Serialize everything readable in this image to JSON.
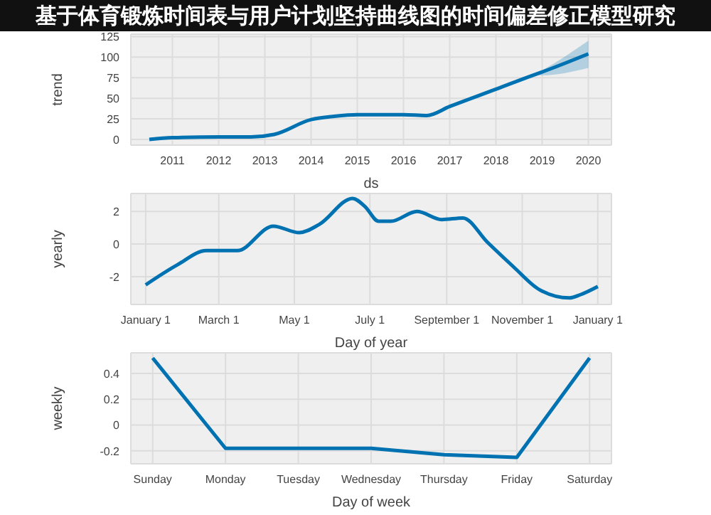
{
  "chart_data": [
    {
      "type": "line",
      "title": "基于体育锻炼时间表与用户计划坚持曲线图的时间偏差修正模型研究",
      "xlabel": "ds",
      "ylabel": "trend",
      "grid": true,
      "xlim": [
        2010.1,
        2020.5
      ],
      "xticks": [
        2011,
        2012,
        2013,
        2014,
        2015,
        2016,
        2017,
        2018,
        2019,
        2020
      ],
      "ylim": [
        -7,
        128
      ],
      "yticks": [
        0,
        25,
        50,
        75,
        100,
        125
      ],
      "series": [
        {
          "color": "#0072b2",
          "x": [
            2010.5,
            2011,
            2012,
            2012.7,
            2013.2,
            2014,
            2014.5,
            2015,
            2016,
            2016.5,
            2017,
            2018,
            2018.8,
            2019,
            2020
          ],
          "values": [
            0,
            2,
            3,
            3,
            6,
            24,
            28,
            30,
            30,
            29,
            40,
            61,
            78,
            82,
            104
          ],
          "lower": [
            0,
            2,
            3,
            3,
            6,
            24,
            28,
            30,
            30,
            29,
            40,
            61,
            78,
            78,
            87
          ],
          "upper": [
            0,
            2,
            3,
            3,
            6,
            24,
            28,
            30,
            30,
            29,
            40,
            61,
            78,
            84,
            120
          ]
        }
      ]
    },
    {
      "type": "line",
      "xlabel": "Day of year",
      "ylabel": "yearly",
      "grid": true,
      "xlim": [
        "2016-12-20",
        "2018-01-12"
      ],
      "xticks": [
        {
          "value": "2017-01-01",
          "label": "January 1"
        },
        {
          "value": "2017-03-01",
          "label": "March 1"
        },
        {
          "value": "2017-05-01",
          "label": "May 1"
        },
        {
          "value": "2017-07-01",
          "label": "July 1"
        },
        {
          "value": "2017-09-01",
          "label": "September 1"
        },
        {
          "value": "2017-11-01",
          "label": "November 1"
        },
        {
          "value": "2018-01-01",
          "label": "January 1"
        }
      ],
      "ylim": [
        -3.7,
        3.1
      ],
      "yticks": [
        -2,
        0,
        2
      ],
      "series": [
        {
          "color": "#0072b2",
          "x": [
            "2017-01-01",
            "2017-01-26",
            "2017-02-19",
            "2017-03-16",
            "2017-04-14",
            "2017-05-05",
            "2017-05-21",
            "2017-06-17",
            "2017-06-27",
            "2017-07-08",
            "2017-07-18",
            "2017-08-08",
            "2017-08-28",
            "2017-09-14",
            "2017-10-04",
            "2017-10-25",
            "2017-11-15",
            "2017-12-09",
            "2017-12-18",
            "2018-01-01"
          ],
          "values": [
            -2.5,
            -1.3,
            -0.4,
            -0.4,
            1.1,
            0.7,
            1.2,
            2.8,
            2.3,
            1.4,
            1.4,
            2.0,
            1.5,
            1.6,
            0.1,
            -1.4,
            -2.8,
            -3.3,
            -3.1,
            -2.6
          ]
        }
      ]
    },
    {
      "type": "line",
      "xlabel": "Day of week",
      "ylabel": "weekly",
      "grid": true,
      "categories": [
        "Sunday",
        "Monday",
        "Tuesday",
        "Wednesday",
        "Thursday",
        "Friday",
        "Saturday"
      ],
      "ylim": [
        -0.3,
        0.56
      ],
      "yticks": [
        -0.2,
        0,
        0.2,
        0.4
      ],
      "series": [
        {
          "color": "#0072b2",
          "values": [
            0.52,
            -0.18,
            -0.18,
            -0.18,
            -0.23,
            -0.25,
            0.52
          ]
        }
      ]
    }
  ]
}
